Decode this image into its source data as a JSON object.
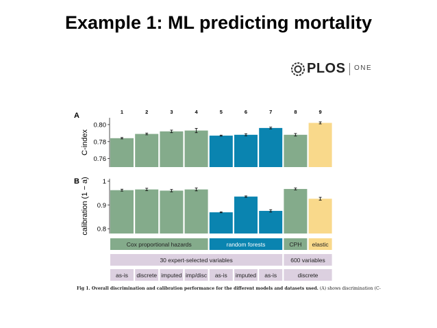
{
  "slide": {
    "title": "Example 1: ML predicting mortality"
  },
  "logo": {
    "brand": "PLOS",
    "sub": "ONE"
  },
  "caption": {
    "lead": "Fig 1. Overall discrimination and calibration performance for the different models and datasets used.",
    "text": "(A) shows discrimination (C-"
  },
  "colors": {
    "green": "#84ab8b",
    "blue": "#0a84b0",
    "yellow": "#f9d98b",
    "lavender": "#dcd0e0"
  },
  "chart_data": [
    {
      "type": "bar",
      "panel_label": "A",
      "categories": [
        "1",
        "2",
        "3",
        "4",
        "5",
        "6",
        "7",
        "8",
        "9"
      ],
      "ylabel": "C-index",
      "ylim": [
        0.75,
        0.808
      ],
      "yticks": [
        0.76,
        0.78,
        0.8
      ],
      "ytick_labels": [
        "0.76",
        "0.78",
        "0.80"
      ],
      "values": [
        0.784,
        0.789,
        0.792,
        0.793,
        0.787,
        0.788,
        0.796,
        0.788,
        0.802
      ],
      "errors": [
        0.0008,
        0.001,
        0.0015,
        0.0025,
        0.0006,
        0.0012,
        0.001,
        0.0015,
        0.0012
      ],
      "bar_colors": [
        "green",
        "green",
        "green",
        "green",
        "blue",
        "blue",
        "blue",
        "green",
        "yellow"
      ]
    },
    {
      "type": "bar",
      "panel_label": "B",
      "categories": [
        "1",
        "2",
        "3",
        "4",
        "5",
        "6",
        "7",
        "8",
        "9"
      ],
      "ylabel": "calibration (1 − a)",
      "ylim": [
        0.78,
        1.01
      ],
      "yticks": [
        0.8,
        0.9,
        1.0
      ],
      "ytick_labels": [
        "0.8",
        "0.9",
        "1"
      ],
      "values": [
        0.962,
        0.965,
        0.96,
        0.965,
        0.869,
        0.935,
        0.875,
        0.967,
        0.926
      ],
      "errors": [
        0.004,
        0.005,
        0.005,
        0.006,
        0.002,
        0.003,
        0.005,
        0.004,
        0.006
      ],
      "bar_colors": [
        "green",
        "green",
        "green",
        "green",
        "blue",
        "blue",
        "blue",
        "green",
        "yellow"
      ]
    }
  ],
  "legend_rows": [
    [
      {
        "label": "Cox proportional hazards",
        "from": 1,
        "to": 4,
        "color": "green"
      },
      {
        "label": "random forests",
        "from": 5,
        "to": 7,
        "color": "blue"
      },
      {
        "label": "CPH",
        "from": 8,
        "to": 8,
        "color": "green"
      },
      {
        "label": "elastic",
        "from": 9,
        "to": 9,
        "color": "yellow"
      }
    ],
    [
      {
        "label": "30 expert-selected variables",
        "from": 1,
        "to": 7,
        "color": "lavender"
      },
      {
        "label": "600 variables",
        "from": 8,
        "to": 9,
        "color": "lavender"
      }
    ],
    [
      {
        "label": "as-is",
        "from": 1,
        "to": 1,
        "color": "lavender"
      },
      {
        "label": "discrete",
        "from": 2,
        "to": 2,
        "color": "lavender"
      },
      {
        "label": "imputed",
        "from": 3,
        "to": 3,
        "color": "lavender"
      },
      {
        "label": "imp/disc",
        "from": 4,
        "to": 4,
        "color": "lavender"
      },
      {
        "label": "as-is",
        "from": 5,
        "to": 5,
        "color": "lavender"
      },
      {
        "label": "imputed",
        "from": 6,
        "to": 6,
        "color": "lavender"
      },
      {
        "label": "as-is",
        "from": 7,
        "to": 7,
        "color": "lavender"
      },
      {
        "label": "discrete",
        "from": 8,
        "to": 9,
        "color": "lavender"
      }
    ]
  ]
}
